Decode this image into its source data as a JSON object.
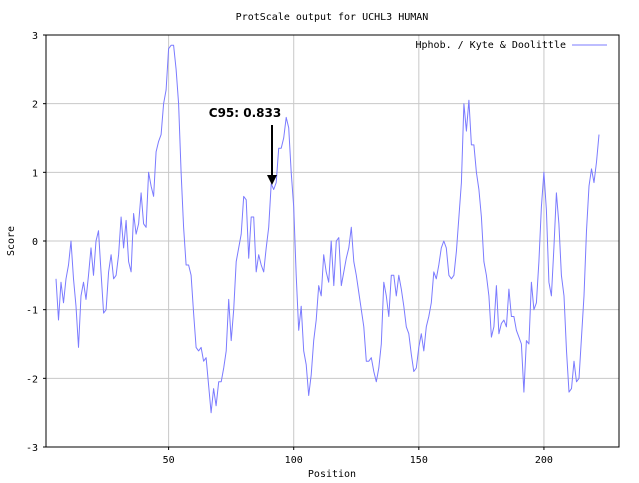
{
  "chart_data": {
    "type": "line",
    "title": "ProtScale output for UCHL3 HUMAN",
    "xlabel": "Position",
    "ylabel": "Score",
    "xlim": [
      1,
      230
    ],
    "ylim": [
      -3,
      3
    ],
    "xticks": [
      50,
      100,
      150,
      200
    ],
    "yticks": [
      -3,
      -2,
      -1,
      0,
      1,
      2,
      3
    ],
    "grid": true,
    "legend_position": "top-right",
    "series": [
      {
        "name": "Hphob. / Kyte & Doolittle",
        "color": "#7b7bff",
        "points": [
          [
            5,
            -0.55
          ],
          [
            6,
            -1.15
          ],
          [
            7,
            -0.6
          ],
          [
            8,
            -0.9
          ],
          [
            9,
            -0.55
          ],
          [
            10,
            -0.35
          ],
          [
            11,
            0.0
          ],
          [
            12,
            -0.55
          ],
          [
            13,
            -0.95
          ],
          [
            14,
            -1.55
          ],
          [
            15,
            -0.8
          ],
          [
            16,
            -0.6
          ],
          [
            17,
            -0.85
          ],
          [
            18,
            -0.5
          ],
          [
            19,
            -0.1
          ],
          [
            20,
            -0.5
          ],
          [
            21,
            0.0
          ],
          [
            22,
            0.15
          ],
          [
            23,
            -0.45
          ],
          [
            24,
            -1.05
          ],
          [
            25,
            -1.0
          ],
          [
            26,
            -0.45
          ],
          [
            27,
            -0.2
          ],
          [
            28,
            -0.55
          ],
          [
            29,
            -0.5
          ],
          [
            30,
            -0.2
          ],
          [
            31,
            0.35
          ],
          [
            32,
            -0.1
          ],
          [
            33,
            0.3
          ],
          [
            34,
            -0.3
          ],
          [
            35,
            -0.45
          ],
          [
            36,
            0.4
          ],
          [
            37,
            0.1
          ],
          [
            38,
            0.25
          ],
          [
            39,
            0.7
          ],
          [
            40,
            0.25
          ],
          [
            41,
            0.2
          ],
          [
            42,
            1.0
          ],
          [
            43,
            0.8
          ],
          [
            44,
            0.65
          ],
          [
            45,
            1.3
          ],
          [
            46,
            1.45
          ],
          [
            47,
            1.55
          ],
          [
            48,
            2.0
          ],
          [
            49,
            2.2
          ],
          [
            50,
            2.8
          ],
          [
            51,
            2.85
          ],
          [
            52,
            2.85
          ],
          [
            53,
            2.5
          ],
          [
            54,
            2.0
          ],
          [
            55,
            1.0
          ],
          [
            56,
            0.2
          ],
          [
            57,
            -0.35
          ],
          [
            58,
            -0.35
          ],
          [
            59,
            -0.5
          ],
          [
            60,
            -1.05
          ],
          [
            61,
            -1.55
          ],
          [
            62,
            -1.6
          ],
          [
            63,
            -1.55
          ],
          [
            64,
            -1.75
          ],
          [
            65,
            -1.7
          ],
          [
            66,
            -2.1
          ],
          [
            67,
            -2.5
          ],
          [
            68,
            -2.15
          ],
          [
            69,
            -2.4
          ],
          [
            70,
            -2.05
          ],
          [
            71,
            -2.05
          ],
          [
            72,
            -1.85
          ],
          [
            73,
            -1.6
          ],
          [
            74,
            -0.85
          ],
          [
            75,
            -1.45
          ],
          [
            76,
            -1.0
          ],
          [
            77,
            -0.3
          ],
          [
            78,
            -0.1
          ],
          [
            79,
            0.1
          ],
          [
            80,
            0.65
          ],
          [
            81,
            0.6
          ],
          [
            82,
            -0.25
          ],
          [
            83,
            0.35
          ],
          [
            84,
            0.35
          ],
          [
            85,
            -0.45
          ],
          [
            86,
            -0.2
          ],
          [
            87,
            -0.35
          ],
          [
            88,
            -0.45
          ],
          [
            89,
            -0.1
          ],
          [
            90,
            0.2
          ],
          [
            91,
            0.833
          ],
          [
            92,
            0.75
          ],
          [
            93,
            0.85
          ],
          [
            94,
            1.35
          ],
          [
            95,
            1.35
          ],
          [
            96,
            1.5
          ],
          [
            97,
            1.8
          ],
          [
            98,
            1.65
          ],
          [
            99,
            1.0
          ],
          [
            100,
            0.5
          ],
          [
            101,
            -0.5
          ],
          [
            102,
            -1.3
          ],
          [
            103,
            -0.95
          ],
          [
            104,
            -1.6
          ],
          [
            105,
            -1.8
          ],
          [
            106,
            -2.25
          ],
          [
            107,
            -1.95
          ],
          [
            108,
            -1.45
          ],
          [
            109,
            -1.15
          ],
          [
            110,
            -0.65
          ],
          [
            111,
            -0.8
          ],
          [
            112,
            -0.2
          ],
          [
            113,
            -0.45
          ],
          [
            114,
            -0.6
          ],
          [
            115,
            0.0
          ],
          [
            116,
            -0.65
          ],
          [
            117,
            0.0
          ],
          [
            118,
            0.05
          ],
          [
            119,
            -0.65
          ],
          [
            120,
            -0.45
          ],
          [
            121,
            -0.25
          ],
          [
            122,
            -0.1
          ],
          [
            123,
            0.2
          ],
          [
            124,
            -0.3
          ],
          [
            125,
            -0.5
          ],
          [
            126,
            -0.75
          ],
          [
            127,
            -1.0
          ],
          [
            128,
            -1.25
          ],
          [
            129,
            -1.75
          ],
          [
            130,
            -1.75
          ],
          [
            131,
            -1.7
          ],
          [
            132,
            -1.9
          ],
          [
            133,
            -2.05
          ],
          [
            134,
            -1.85
          ],
          [
            135,
            -1.5
          ],
          [
            136,
            -0.6
          ],
          [
            137,
            -0.8
          ],
          [
            138,
            -1.1
          ],
          [
            139,
            -0.5
          ],
          [
            140,
            -0.5
          ],
          [
            141,
            -0.8
          ],
          [
            142,
            -0.5
          ],
          [
            143,
            -0.7
          ],
          [
            144,
            -0.95
          ],
          [
            145,
            -1.25
          ],
          [
            146,
            -1.35
          ],
          [
            147,
            -1.65
          ],
          [
            148,
            -1.9
          ],
          [
            149,
            -1.85
          ],
          [
            150,
            -1.55
          ],
          [
            151,
            -1.35
          ],
          [
            152,
            -1.6
          ],
          [
            153,
            -1.25
          ],
          [
            154,
            -1.1
          ],
          [
            155,
            -0.9
          ],
          [
            156,
            -0.45
          ],
          [
            157,
            -0.55
          ],
          [
            158,
            -0.35
          ],
          [
            159,
            -0.1
          ],
          [
            160,
            0.0
          ],
          [
            161,
            -0.1
          ],
          [
            162,
            -0.5
          ],
          [
            163,
            -0.55
          ],
          [
            164,
            -0.5
          ],
          [
            165,
            -0.15
          ],
          [
            166,
            0.35
          ],
          [
            167,
            0.85
          ],
          [
            168,
            2.0
          ],
          [
            169,
            1.6
          ],
          [
            170,
            2.05
          ],
          [
            171,
            1.4
          ],
          [
            172,
            1.4
          ],
          [
            173,
            1.0
          ],
          [
            174,
            0.75
          ],
          [
            175,
            0.35
          ],
          [
            176,
            -0.3
          ],
          [
            177,
            -0.5
          ],
          [
            178,
            -0.8
          ],
          [
            179,
            -1.4
          ],
          [
            180,
            -1.25
          ],
          [
            181,
            -0.65
          ],
          [
            182,
            -1.35
          ],
          [
            183,
            -1.2
          ],
          [
            184,
            -1.15
          ],
          [
            185,
            -1.25
          ],
          [
            186,
            -0.7
          ],
          [
            187,
            -1.1
          ],
          [
            188,
            -1.1
          ],
          [
            189,
            -1.3
          ],
          [
            190,
            -1.4
          ],
          [
            191,
            -1.5
          ],
          [
            192,
            -2.2
          ],
          [
            193,
            -1.45
          ],
          [
            194,
            -1.5
          ],
          [
            195,
            -0.6
          ],
          [
            196,
            -1.0
          ],
          [
            197,
            -0.9
          ],
          [
            198,
            -0.3
          ],
          [
            199,
            0.5
          ],
          [
            200,
            1.0
          ],
          [
            201,
            0.45
          ],
          [
            202,
            -0.6
          ],
          [
            203,
            -0.8
          ],
          [
            204,
            -0.1
          ],
          [
            205,
            0.7
          ],
          [
            206,
            0.25
          ],
          [
            207,
            -0.5
          ],
          [
            208,
            -0.8
          ],
          [
            209,
            -1.6
          ],
          [
            210,
            -2.2
          ],
          [
            211,
            -2.15
          ],
          [
            212,
            -1.75
          ],
          [
            213,
            -2.05
          ],
          [
            214,
            -2.0
          ],
          [
            215,
            -1.4
          ],
          [
            216,
            -0.8
          ],
          [
            217,
            0.15
          ],
          [
            218,
            0.8
          ],
          [
            219,
            1.05
          ],
          [
            220,
            0.85
          ],
          [
            221,
            1.15
          ],
          [
            222,
            1.55
          ]
        ]
      }
    ],
    "annotations": [
      {
        "text": "C95: 0.833",
        "x": 91,
        "y": 0.833
      }
    ]
  },
  "colors": {
    "line": "#7b7bff",
    "grid": "#c8c8c8",
    "axis": "#000000",
    "text": "#000000",
    "background": "#ffffff"
  }
}
